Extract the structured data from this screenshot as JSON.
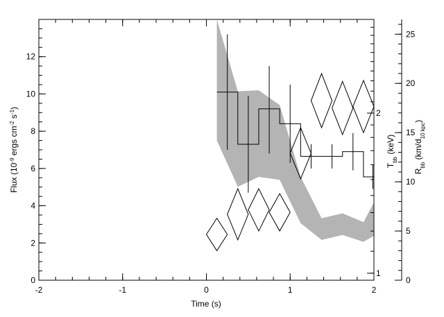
{
  "chart_data": {
    "type": "line",
    "xlabel": "Time (s)",
    "ylabel_left": {
      "main": "Flux (10",
      "sup1": "-9",
      "mid": " ergs cm",
      "sup2": "-2",
      "mid2": " s",
      "sup3": "-1",
      "end": ")"
    },
    "ylabel_right_temp": {
      "main": "T",
      "sub": "bb",
      "end": " (keV)"
    },
    "ylabel_right_radius": {
      "main": "R",
      "sub": "bb",
      "mid": " (km/d",
      "sub2": "10 kpc",
      "end": ")"
    },
    "xlim": [
      -2,
      2
    ],
    "ylim_flux": [
      0,
      14
    ],
    "ylim_radius": [
      0,
      26.5
    ],
    "temp_log_range": [
      0.97,
      3.0
    ],
    "x_ticks": [
      "-2",
      "-1",
      "0",
      "1",
      "2"
    ],
    "x_tick_values": [
      -2,
      -1,
      0,
      1,
      2
    ],
    "flux_ticks": [
      "0",
      "2",
      "4",
      "6",
      "8",
      "10",
      "12"
    ],
    "flux_tick_values": [
      0,
      2,
      4,
      6,
      8,
      10,
      12
    ],
    "radius_ticks": [
      "0",
      "5",
      "10",
      "15",
      "20",
      "25"
    ],
    "radius_tick_values": [
      0,
      5,
      10,
      15,
      20,
      25
    ],
    "temp_ticks": [
      "1",
      "2"
    ],
    "temp_tick_values": [
      1,
      2
    ],
    "flux_histogram": [
      {
        "x0": 0.125,
        "x1": 0.375,
        "y": 10.1,
        "err_lo": 7.0,
        "err_hi": 13.2
      },
      {
        "x0": 0.375,
        "x1": 0.625,
        "y": 7.3,
        "err_lo": 4.7,
        "err_hi": 9.9
      },
      {
        "x0": 0.625,
        "x1": 0.875,
        "y": 9.2,
        "err_lo": 6.8,
        "err_hi": 11.5
      },
      {
        "x0": 0.875,
        "x1": 1.125,
        "y": 8.4,
        "err_lo": 6.3,
        "err_hi": 10.5
      },
      {
        "x0": 1.125,
        "x1": 1.375,
        "y": 6.65,
        "err_lo": 6.0,
        "err_hi": 7.3
      },
      {
        "x0": 1.375,
        "x1": 1.625,
        "y": 6.65,
        "err_lo": 6.0,
        "err_hi": 7.3
      },
      {
        "x0": 1.625,
        "x1": 1.875,
        "y": 6.9,
        "err_lo": 5.9,
        "err_hi": 7.9
      },
      {
        "x0": 1.875,
        "x1": 2.1,
        "y": 5.55,
        "err_lo": 4.9,
        "err_hi": 6.2
      }
    ],
    "temperature_diamonds_radius_units": [
      {
        "x": 0.125,
        "ylo": 3.0,
        "yhi": 6.3
      },
      {
        "x": 0.375,
        "ylo": 4.1,
        "yhi": 9.3
      },
      {
        "x": 0.625,
        "ylo": 5.0,
        "yhi": 9.3
      },
      {
        "x": 0.875,
        "ylo": 5.0,
        "yhi": 8.8
      },
      {
        "x": 1.125,
        "ylo": 10.3,
        "yhi": 15.5
      },
      {
        "x": 1.375,
        "ylo": 15.5,
        "yhi": 21.0
      },
      {
        "x": 1.625,
        "ylo": 14.8,
        "yhi": 20.2
      },
      {
        "x": 1.875,
        "ylo": 15.0,
        "yhi": 20.3
      }
    ],
    "radius_band": {
      "x": [
        0.125,
        0.375,
        0.625,
        0.875,
        1.125,
        1.375,
        1.625,
        1.875,
        2.1
      ],
      "upper": [
        26.5,
        19.2,
        19.3,
        17.8,
        10.5,
        6.3,
        6.8,
        5.9,
        9.5
      ],
      "lower": [
        14.2,
        9.5,
        10.5,
        10.2,
        5.8,
        4.1,
        4.6,
        3.9,
        5.0
      ]
    },
    "band_color": "#b4b4b4",
    "line_color": "#000000"
  }
}
